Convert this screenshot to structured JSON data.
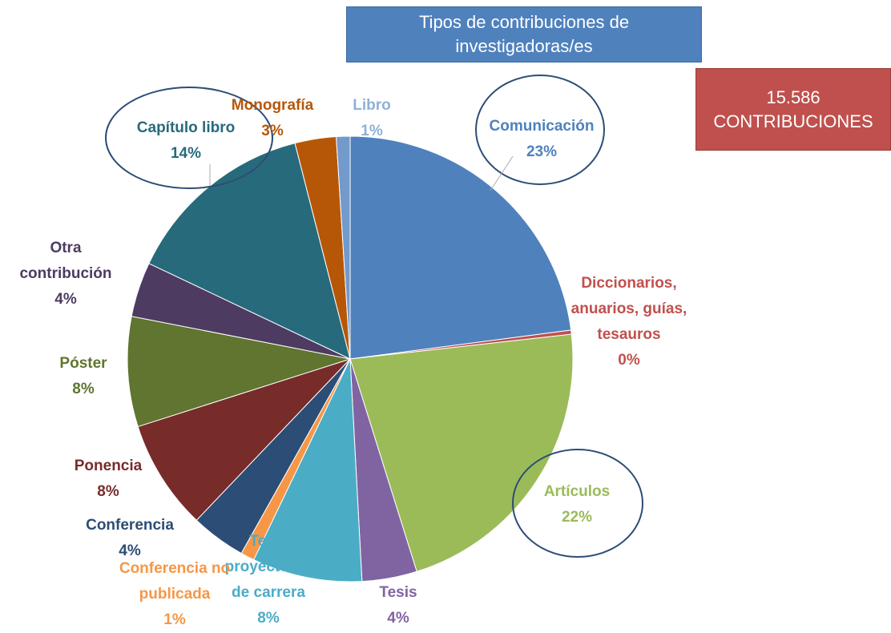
{
  "chart_data": {
    "type": "pie",
    "title": "Tipos de contribuciones de investigadoras/es",
    "annotation": "15.586 CONTRIBUCIONES",
    "categories": [
      "Comunicación",
      "Diccionarios, anuarios, guías, tesauros",
      "Artículos",
      "Tesis",
      "Tesis proyecto fin de carrera",
      "Conferencia no publicada",
      "Conferencia",
      "Ponencia",
      "Póster",
      "Otra contribución",
      "Capítulo libro",
      "Monografía",
      "Libro"
    ],
    "values": [
      23,
      0.3,
      22,
      4,
      8,
      1,
      4,
      8,
      8,
      4,
      14,
      3,
      1
    ],
    "value_labels": [
      "23%",
      "0%",
      "22%",
      "4%",
      "8%",
      "1%",
      "4%",
      "8%",
      "8%",
      "4%",
      "14%",
      "3%",
      "1%"
    ],
    "colors": [
      "#4f81bd",
      "#c0504d",
      "#9bbb59",
      "#8064a2",
      "#4bacc6",
      "#f79646",
      "#2c4d75",
      "#772c2a",
      "#5f7530",
      "#4d3b62",
      "#276a7c",
      "#b65708",
      "#729aca"
    ]
  }
}
